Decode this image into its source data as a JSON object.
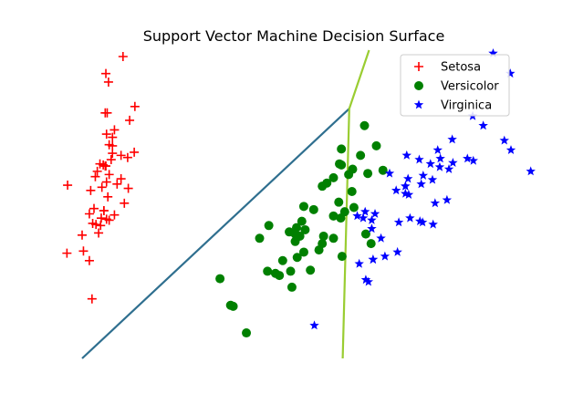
{
  "chart_data": {
    "type": "scatter",
    "title": "Support Vector Machine Decision Surface",
    "xlabel": "",
    "ylabel": "",
    "axes_visible": false,
    "grid": false,
    "legend_placement": "top-right",
    "xlim": [
      -3.0,
      3.5
    ],
    "ylim": [
      -1.5,
      1.4
    ],
    "series": [
      {
        "name": "Setosa",
        "marker": "plus",
        "color": "#ff0000",
        "points": [
          [
            -2.68,
            0.32
          ],
          [
            -2.71,
            -0.18
          ],
          [
            -2.89,
            -0.14
          ],
          [
            -2.75,
            -0.32
          ],
          [
            -2.73,
            0.33
          ],
          [
            -2.28,
            0.74
          ],
          [
            -2.82,
            -0.09
          ],
          [
            -2.63,
            0.16
          ],
          [
            -2.89,
            -0.58
          ],
          [
            -2.67,
            -0.11
          ],
          [
            -2.51,
            0.65
          ],
          [
            -2.61,
            0.02
          ],
          [
            -2.79,
            -0.24
          ],
          [
            -3.23,
            -0.51
          ],
          [
            -2.64,
            1.18
          ],
          [
            -2.38,
            1.34
          ],
          [
            -2.62,
            0.81
          ],
          [
            -2.65,
            0.31
          ],
          [
            -2.2,
            0.87
          ],
          [
            -2.59,
            0.51
          ],
          [
            -2.31,
            0.39
          ],
          [
            -2.54,
            0.43
          ],
          [
            -3.22,
            0.13
          ],
          [
            -2.3,
            0.1
          ],
          [
            -2.36,
            -0.04
          ],
          [
            -2.51,
            -0.15
          ],
          [
            -2.47,
            0.14
          ],
          [
            -2.56,
            0.37
          ],
          [
            -2.64,
            0.31
          ],
          [
            -2.63,
            -0.19
          ],
          [
            -2.59,
            -0.2
          ],
          [
            -2.41,
            0.41
          ],
          [
            -2.65,
            0.81
          ],
          [
            -2.6,
            1.1
          ],
          [
            -2.67,
            -0.11
          ],
          [
            -2.87,
            0.08
          ],
          [
            -2.63,
            0.61
          ],
          [
            -2.8,
            0.21
          ],
          [
            -2.98,
            -0.49
          ],
          [
            -2.59,
            0.23
          ],
          [
            -2.77,
            0.26
          ],
          [
            -2.85,
            -0.94
          ],
          [
            -3.0,
            -0.34
          ],
          [
            -2.41,
            0.19
          ],
          [
            -2.21,
            0.44
          ],
          [
            -2.72,
            -0.25
          ],
          [
            -2.54,
            0.5
          ],
          [
            -2.84,
            -0.23
          ],
          [
            -2.54,
            0.58
          ],
          [
            -2.7,
            0.11
          ]
        ]
      },
      {
        "name": "Versicolor",
        "marker": "circle",
        "color": "#008000",
        "points": [
          [
            1.28,
            0.69
          ],
          [
            0.93,
            0.32
          ],
          [
            1.46,
            0.5
          ],
          [
            0.18,
            -0.83
          ],
          [
            1.09,
            0.07
          ],
          [
            0.64,
            -0.42
          ],
          [
            1.1,
            0.28
          ],
          [
            -0.75,
            -1.0
          ],
          [
            1.04,
            0.23
          ],
          [
            -0.01,
            -0.72
          ],
          [
            -0.51,
            -1.26
          ],
          [
            0.51,
            -0.1
          ],
          [
            0.26,
            -0.55
          ],
          [
            0.98,
            -0.12
          ],
          [
            -0.17,
            -0.25
          ],
          [
            0.93,
            0.47
          ],
          [
            0.66,
            -0.35
          ],
          [
            0.23,
            -0.33
          ],
          [
            0.94,
            -0.54
          ],
          [
            0.04,
            -0.58
          ],
          [
            1.12,
            -0.08
          ],
          [
            0.36,
            -0.07
          ],
          [
            1.3,
            -0.33
          ],
          [
            0.92,
            -0.18
          ],
          [
            0.71,
            0.15
          ],
          [
            0.9,
            0.33
          ],
          [
            1.33,
            0.24
          ],
          [
            1.56,
            0.27
          ],
          [
            0.81,
            -0.16
          ],
          [
            -0.31,
            -0.37
          ],
          [
            -0.07,
            -0.7
          ],
          [
            -0.19,
            -0.68
          ],
          [
            0.14,
            -0.31
          ],
          [
            1.38,
            -0.42
          ],
          [
            0.59,
            -0.48
          ],
          [
            0.81,
            0.2
          ],
          [
            1.22,
            0.41
          ],
          [
            0.81,
            -0.37
          ],
          [
            0.25,
            -0.27
          ],
          [
            0.16,
            -0.68
          ],
          [
            0.46,
            -0.67
          ],
          [
            0.89,
            -0.03
          ],
          [
            0.23,
            -0.4
          ],
          [
            -0.71,
            -1.01
          ],
          [
            0.36,
            -0.5
          ],
          [
            0.33,
            -0.21
          ],
          [
            0.38,
            -0.29
          ],
          [
            0.64,
            0.12
          ],
          [
            -0.91,
            -0.75
          ],
          [
            0.3,
            -0.35
          ]
        ]
      },
      {
        "name": "Virginica",
        "marker": "star",
        "color": "#0000ff",
        "points": [
          [
            2.53,
            -0.01
          ],
          [
            1.41,
            -0.57
          ],
          [
            2.62,
            0.34
          ],
          [
            1.97,
            -0.18
          ],
          [
            2.35,
            -0.04
          ],
          [
            3.4,
            0.55
          ],
          [
            0.52,
            -1.19
          ],
          [
            2.93,
            0.36
          ],
          [
            2.32,
            -0.24
          ],
          [
            2.92,
            0.78
          ],
          [
            1.66,
            0.24
          ],
          [
            1.8,
            -0.22
          ],
          [
            2.17,
            0.22
          ],
          [
            1.34,
            -0.78
          ],
          [
            1.59,
            -0.54
          ],
          [
            1.9,
            0.12
          ],
          [
            1.95,
            0.04
          ],
          [
            3.49,
            1.18
          ],
          [
            3.8,
            0.26
          ],
          [
            1.3,
            -0.76
          ],
          [
            2.43,
            0.38
          ],
          [
            1.2,
            -0.61
          ],
          [
            3.5,
            0.46
          ],
          [
            1.39,
            -0.2
          ],
          [
            2.28,
            0.33
          ],
          [
            2.61,
            0.56
          ],
          [
            1.26,
            -0.18
          ],
          [
            1.29,
            -0.12
          ],
          [
            2.12,
            -0.21
          ],
          [
            2.39,
            0.46
          ],
          [
            2.84,
            0.38
          ],
          [
            3.23,
            1.37
          ],
          [
            2.16,
            -0.22
          ],
          [
            1.44,
            -0.14
          ],
          [
            1.78,
            -0.5
          ],
          [
            3.08,
            0.69
          ],
          [
            2.14,
            0.14
          ],
          [
            1.9,
            0.05
          ],
          [
            1.17,
            -0.16
          ],
          [
            2.11,
            0.37
          ],
          [
            2.31,
            0.18
          ],
          [
            1.92,
            0.41
          ],
          [
            1.41,
            -0.57
          ],
          [
            2.56,
            0.28
          ],
          [
            2.42,
            0.3
          ],
          [
            1.94,
            0.19
          ],
          [
            1.53,
            -0.37
          ],
          [
            1.76,
            0.08
          ],
          [
            1.9,
            0.12
          ],
          [
            1.39,
            -0.28
          ]
        ]
      }
    ],
    "boundaries": [
      {
        "color": "#2f6f8f",
        "points": [
          [
            -3.2,
            -1.5
          ],
          [
            1.05,
            0.85
          ]
        ]
      },
      {
        "color": "#9acd32",
        "points": [
          [
            0.95,
            -1.5
          ],
          [
            1.05,
            0.85
          ],
          [
            1.35,
            1.5
          ]
        ]
      }
    ]
  }
}
